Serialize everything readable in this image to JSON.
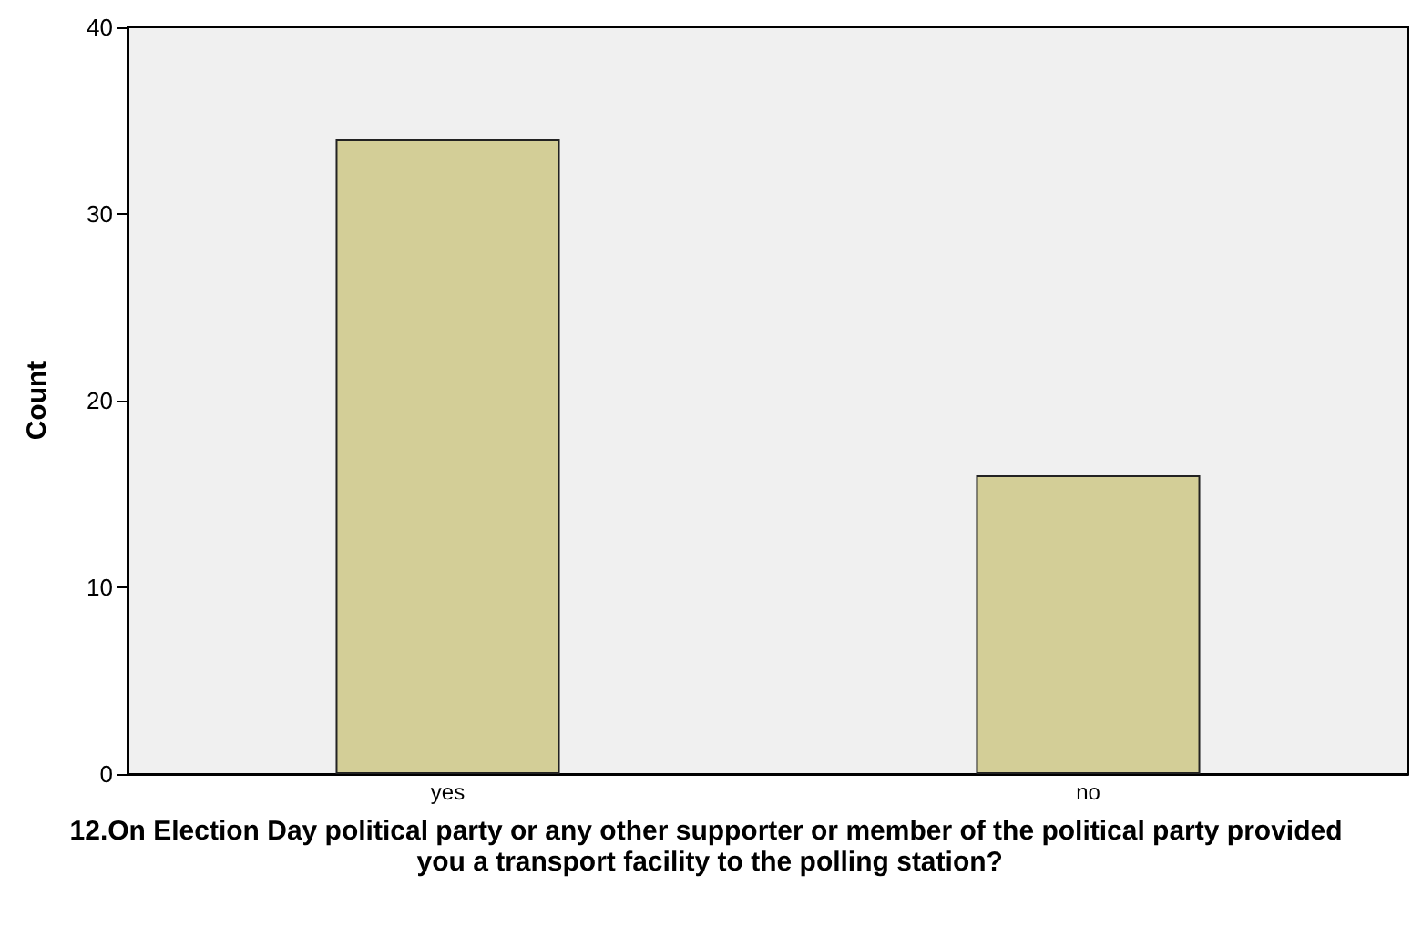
{
  "chart_data": {
    "type": "bar",
    "xlabel": "12.On Election Day political party or any other supporter or member of the political party provided you a transport facility to the polling station?",
    "ylabel": "Count",
    "categories": [
      "yes",
      "no"
    ],
    "values": [
      34,
      16
    ],
    "color": "#d3ce97",
    "ylim": [
      0,
      40
    ],
    "yticks": [
      0,
      10,
      20,
      30,
      40
    ],
    "grid": false
  }
}
